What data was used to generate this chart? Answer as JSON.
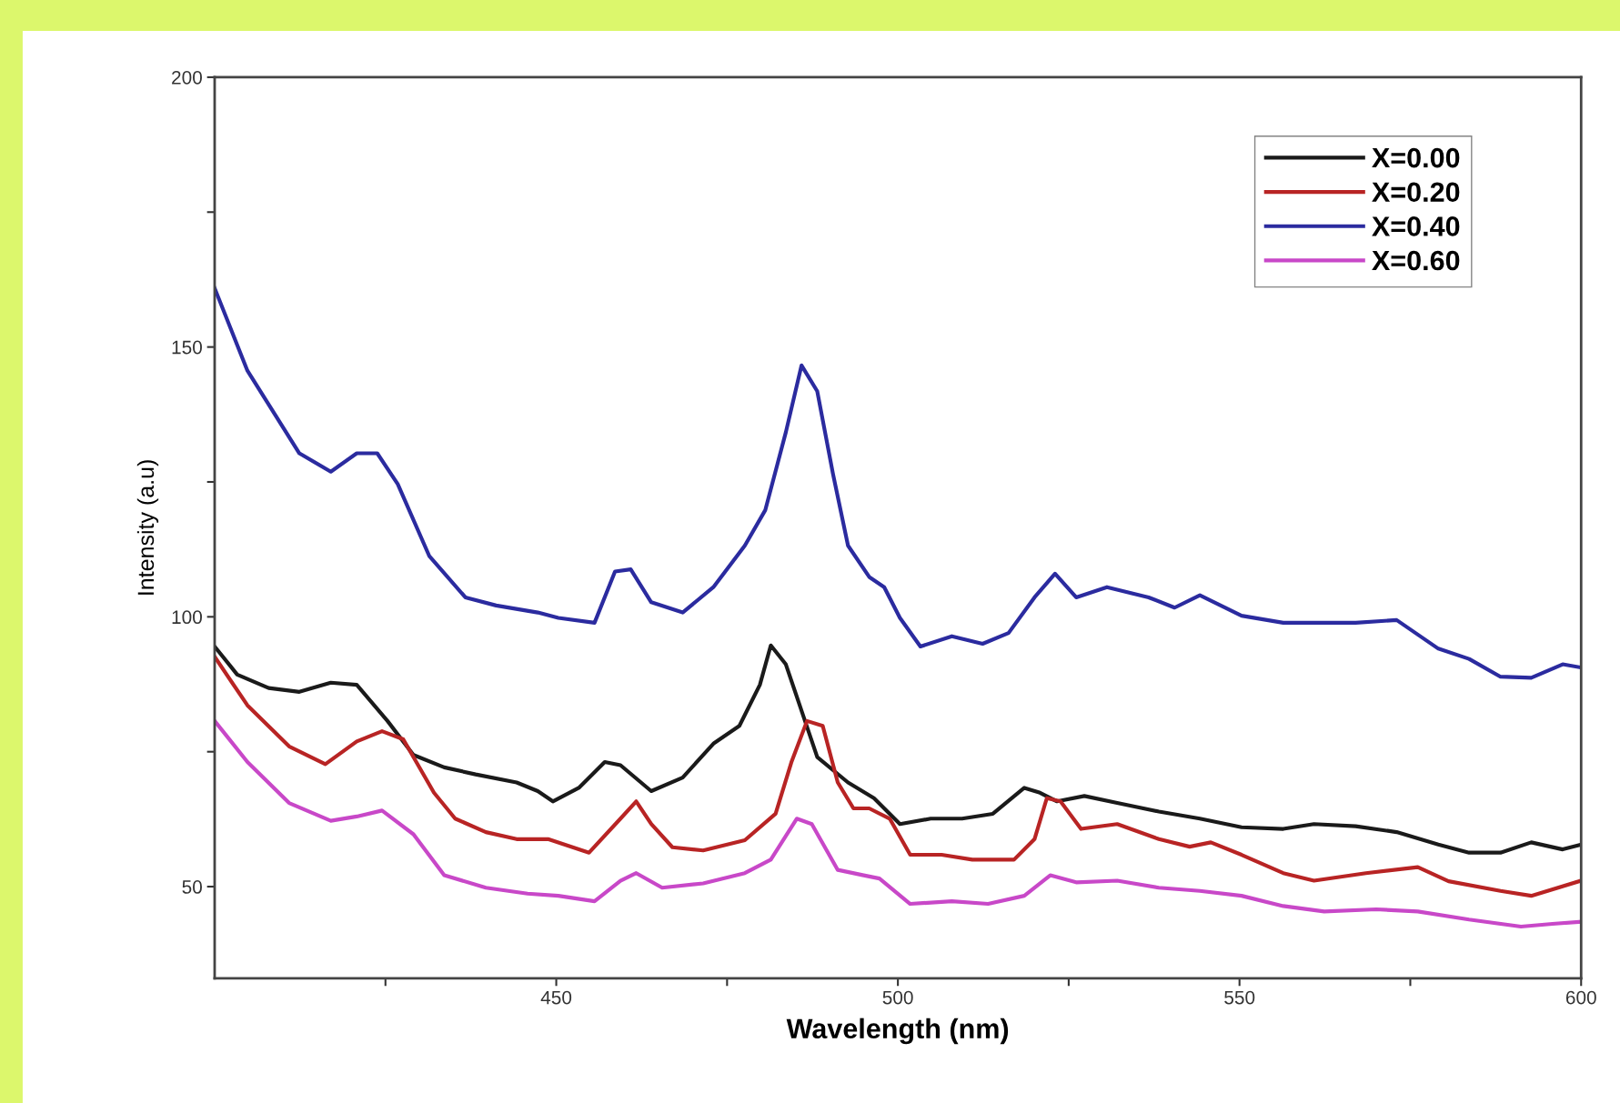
{
  "chart_data": {
    "type": "line",
    "xlabel": "Wavelength (nm)",
    "ylabel": "Intensity (a.u)",
    "xlim": [
      400,
      600
    ],
    "ylim": [
      33,
      200
    ],
    "xticks": [
      {
        "value": 425,
        "label": null
      },
      450,
      {
        "value": 475,
        "label": null
      },
      500,
      {
        "value": 525,
        "label": null
      },
      550,
      {
        "value": 575,
        "label": null
      },
      600
    ],
    "yticks": [
      50,
      {
        "value": 75,
        "label": null
      },
      100,
      {
        "value": 125,
        "label": null
      },
      150,
      {
        "value": 175,
        "label": null
      },
      200
    ],
    "legend": "top right",
    "grid": false,
    "line_style": "solid",
    "marker": "none",
    "series": [
      {
        "name": "X=0.00",
        "color": "#1a1a1a",
        "x": [
          400,
          403.3,
          407.9,
          412.4,
          417,
          420.8,
          425.3,
          429.1,
          433.6,
          438.2,
          444.2,
          447.3,
          449.5,
          453.3,
          457.1,
          459.4,
          463.9,
          468.5,
          473,
          476.8,
          479.8,
          481.4,
          483.6,
          485.9,
          488.2,
          492.7,
          496.5,
          500.3,
          504.8,
          509.4,
          513.9,
          518.5,
          520.8,
          523.3,
          527.3,
          532.1,
          538.2,
          544.2,
          550.3,
          556.4,
          560.9,
          567,
          573,
          579.1,
          583.6,
          588.2,
          592.7,
          597.3,
          600
        ],
        "values": [
          94.5,
          89.3,
          86.8,
          86.1,
          87.8,
          87.4,
          80.7,
          74.4,
          72.1,
          70.8,
          69.3,
          67.7,
          65.8,
          68.3,
          73.1,
          72.5,
          67.7,
          70.2,
          76.5,
          79.8,
          87.4,
          94.7,
          91.2,
          82.6,
          74.0,
          69.3,
          66.4,
          61.6,
          62.6,
          62.6,
          63.5,
          68.3,
          67.4,
          65.8,
          66.8,
          65.5,
          63.9,
          62.6,
          61.0,
          60.7,
          61.6,
          61.2,
          60.1,
          57.8,
          56.3,
          56.3,
          58.2,
          56.9,
          57.8
        ]
      },
      {
        "name": "X=0.20",
        "color": "#b82424",
        "x": [
          400,
          404.8,
          410.9,
          416.2,
          420.8,
          424.5,
          427.6,
          432.1,
          435.2,
          439.7,
          444.2,
          448.8,
          454.8,
          459.4,
          461.7,
          463.9,
          467,
          471.5,
          477.6,
          482.1,
          484.4,
          486.7,
          489,
          491.2,
          493.5,
          495.8,
          498.8,
          501.8,
          506.4,
          510.9,
          517,
          520,
          521.8,
          523.8,
          526.8,
          532.1,
          538.2,
          542.7,
          545.8,
          550.3,
          556.4,
          560.9,
          568.5,
          576.1,
          580.6,
          588.2,
          592.7,
          600
        ],
        "values": [
          92.6,
          83.6,
          76.0,
          72.7,
          76.9,
          78.8,
          77.3,
          67.4,
          62.6,
          60.1,
          58.8,
          58.8,
          56.3,
          62.6,
          65.8,
          61.6,
          57.3,
          56.7,
          58.6,
          63.5,
          73.0,
          80.7,
          79.8,
          69.3,
          64.5,
          64.5,
          62.6,
          55.9,
          55.9,
          55.0,
          55.0,
          58.8,
          66.4,
          65.8,
          60.7,
          61.6,
          58.8,
          57.4,
          58.2,
          55.9,
          52.5,
          51.1,
          52.5,
          53.6,
          51.0,
          49.2,
          48.3,
          51.1
        ]
      },
      {
        "name": "X=0.40",
        "color": "#2b2b9f",
        "x": [
          400,
          404.8,
          412.4,
          417,
          420.8,
          423.8,
          426.8,
          431.4,
          436.7,
          441.2,
          447.3,
          450.3,
          455.6,
          458.6,
          460.9,
          463.9,
          468.5,
          473,
          477.6,
          480.6,
          483.6,
          485.9,
          488.2,
          490.5,
          492.7,
          495.8,
          498,
          500.3,
          503.3,
          507.9,
          512.4,
          516.2,
          520,
          523,
          526.1,
          530.6,
          536.7,
          540.5,
          544.2,
          550.3,
          556.4,
          560.9,
          567,
          573,
          579.1,
          583.6,
          588.2,
          592.7,
          597.3,
          600
        ],
        "values": [
          160.9,
          145.6,
          130.3,
          126.9,
          130.3,
          130.3,
          124.6,
          111.3,
          103.6,
          102.1,
          100.8,
          99.8,
          98.9,
          108.4,
          108.8,
          102.7,
          100.8,
          105.5,
          113.2,
          119.8,
          134.2,
          146.6,
          141.8,
          126.5,
          113.2,
          107.4,
          105.5,
          99.8,
          94.5,
          96.4,
          95.0,
          97.0,
          103.6,
          108.0,
          103.6,
          105.5,
          103.6,
          101.7,
          104.0,
          100.2,
          98.9,
          98.9,
          98.9,
          99.4,
          94.1,
          92.2,
          88.9,
          88.7,
          91.2,
          90.6
        ]
      },
      {
        "name": "X=0.60",
        "color": "#c848c8",
        "x": [
          400,
          404.8,
          410.9,
          417,
          420.8,
          424.5,
          429.1,
          433.6,
          439.7,
          445.8,
          450.3,
          455.6,
          459.4,
          461.7,
          465.5,
          471.5,
          477.6,
          481.4,
          485.2,
          487.4,
          491.2,
          495,
          497.3,
          501.8,
          507.9,
          513.2,
          518.5,
          522.3,
          526.1,
          532.1,
          538.2,
          544.2,
          550.3,
          556.4,
          562.4,
          570,
          576.1,
          583.6,
          591.2,
          595.8,
          600
        ],
        "values": [
          80.7,
          73.1,
          65.5,
          62.2,
          63.0,
          64.1,
          59.7,
          52.1,
          49.8,
          48.7,
          48.3,
          47.3,
          51.1,
          52.5,
          49.8,
          50.6,
          52.5,
          55.0,
          62.6,
          61.6,
          53.1,
          52.1,
          51.5,
          46.8,
          47.3,
          46.8,
          48.3,
          52.1,
          50.8,
          51.1,
          49.8,
          49.2,
          48.3,
          46.4,
          45.4,
          45.8,
          45.4,
          43.9,
          42.6,
          43.1,
          43.5
        ]
      }
    ]
  }
}
